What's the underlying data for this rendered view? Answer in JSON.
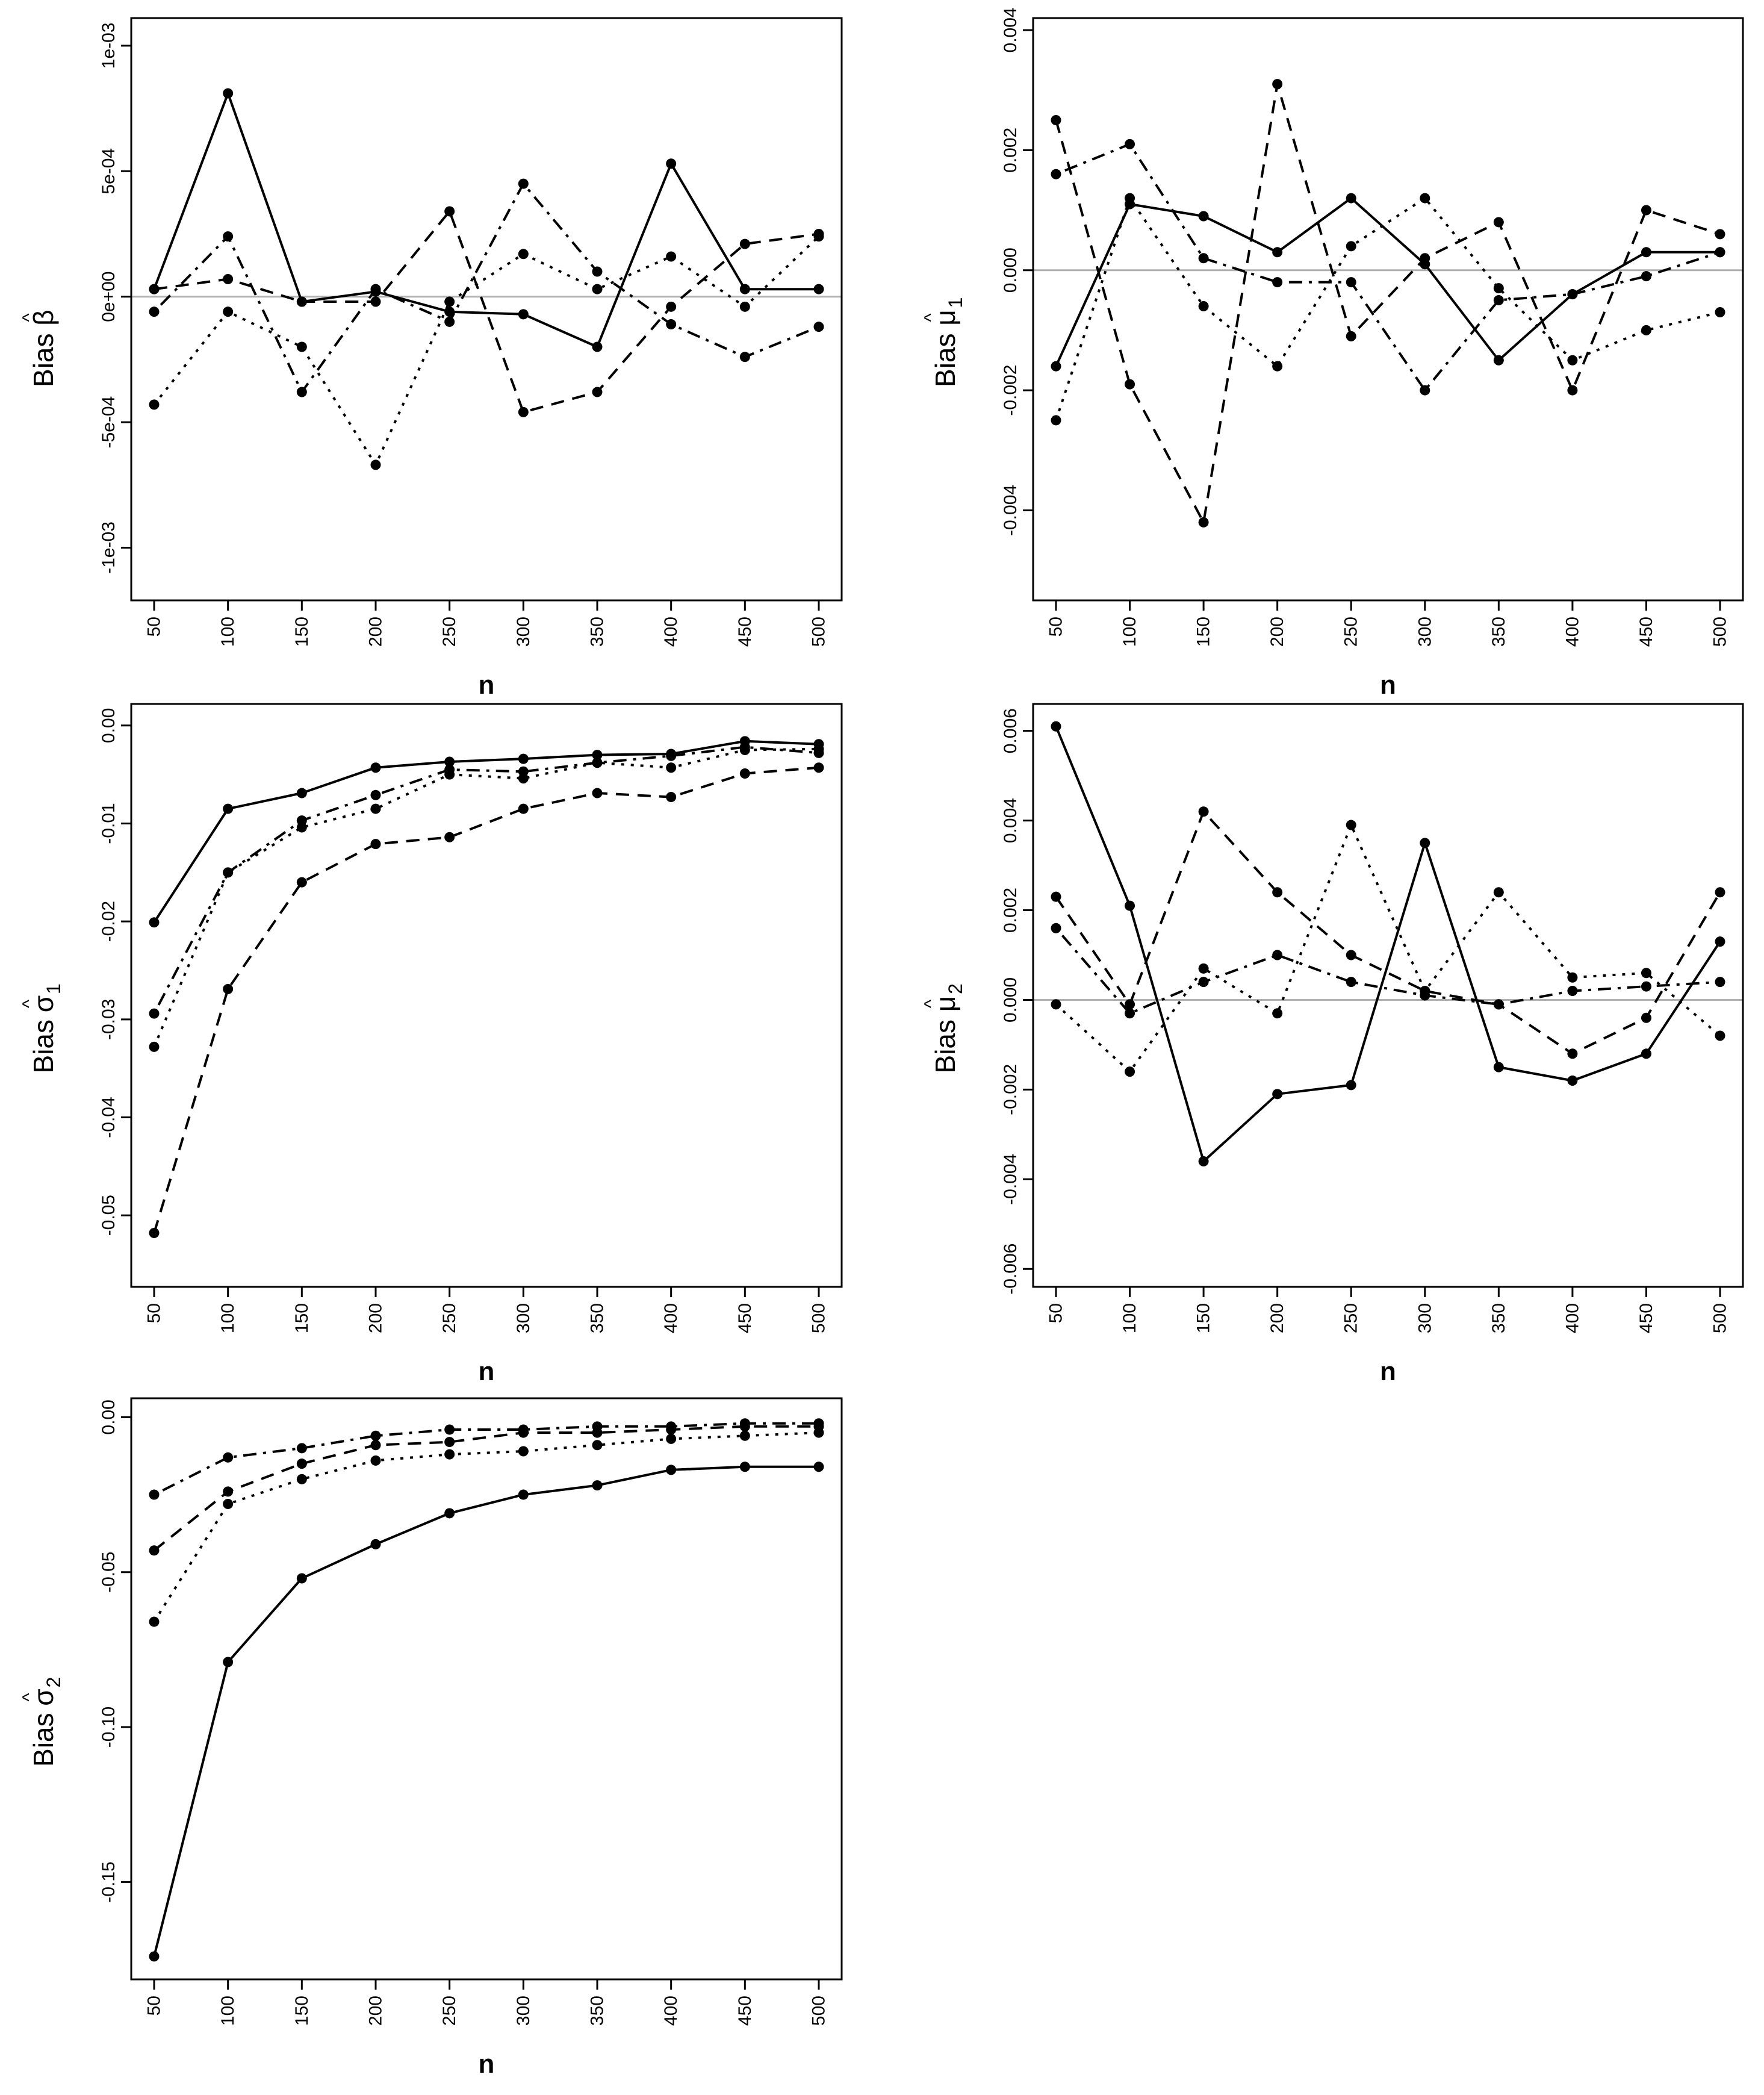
{
  "chart_data": [
    {
      "id": "beta",
      "type": "line",
      "ylabel": {
        "prefix": "Bias",
        "symbol": "β",
        "hat": "^",
        "sub": ""
      },
      "xlabel": "n",
      "x": [
        50,
        100,
        150,
        200,
        250,
        300,
        350,
        400,
        450,
        500
      ],
      "xtick_labels": [
        "50",
        "100",
        "150",
        "200",
        "250",
        "300",
        "350",
        "400",
        "450",
        "500"
      ],
      "ylim": [
        -0.00121,
        0.00111
      ],
      "yticks": [
        -0.001,
        -0.0005,
        0.0,
        0.0005,
        0.001
      ],
      "ytick_labels": [
        "-1e-03",
        "-5e-04",
        "0e+00",
        "5e-04",
        "1e-03"
      ],
      "reference_line": 0,
      "series": [
        {
          "name": "solid",
          "dash": "solid",
          "values": [
            3e-05,
            0.00081,
            -2e-05,
            2e-05,
            -6e-05,
            -7e-05,
            -0.0002,
            0.00053,
            3e-05,
            3e-05
          ]
        },
        {
          "name": "dashed",
          "dash": "dashed",
          "values": [
            3e-05,
            7e-05,
            -2e-05,
            -2e-05,
            0.00034,
            -0.00046,
            -0.00038,
            -4e-05,
            0.00021,
            0.00025
          ]
        },
        {
          "name": "dotted",
          "dash": "dotted",
          "values": [
            -0.00043,
            -6e-05,
            -0.0002,
            -0.00067,
            -2e-05,
            0.00017,
            3e-05,
            0.00016,
            -4e-05,
            0.00024
          ]
        },
        {
          "name": "dotdash",
          "dash": "dotdash",
          "values": [
            -6e-05,
            0.00024,
            -0.00038,
            3e-05,
            -0.0001,
            0.00045,
            0.0001,
            -0.00011,
            -0.00024,
            -0.00012
          ]
        }
      ]
    },
    {
      "id": "mu1",
      "type": "line",
      "ylabel": {
        "prefix": "Bias",
        "symbol": "μ",
        "hat": "^",
        "sub": "1"
      },
      "xlabel": "n",
      "x": [
        50,
        100,
        150,
        200,
        250,
        300,
        350,
        400,
        450,
        500
      ],
      "xtick_labels": [
        "50",
        "100",
        "150",
        "200",
        "250",
        "300",
        "350",
        "400",
        "450",
        "500"
      ],
      "yticks": [
        -0.004,
        -0.002,
        0.0,
        0.002,
        0.004
      ],
      "ytick_labels": [
        "-0.004",
        "-0.002",
        "0.000",
        "0.002",
        "0.004"
      ],
      "ylim": [
        -0.0055,
        0.0042
      ],
      "reference_line": 0,
      "series": [
        {
          "name": "solid",
          "dash": "solid",
          "values": [
            -0.0016,
            0.0011,
            0.0009,
            0.0003,
            0.0012,
            0.0001,
            -0.0015,
            -0.0004,
            0.0003,
            0.0003
          ]
        },
        {
          "name": "dashed",
          "dash": "dashed",
          "values": [
            0.0025,
            -0.0019,
            -0.0042,
            0.0031,
            -0.0011,
            0.0002,
            0.0008,
            -0.002,
            0.001,
            0.0006
          ]
        },
        {
          "name": "dotted",
          "dash": "dotted",
          "values": [
            -0.0025,
            0.0012,
            -0.0006,
            -0.0016,
            0.0004,
            0.0012,
            -0.0003,
            -0.0015,
            -0.001,
            -0.0007
          ]
        },
        {
          "name": "dotdash",
          "dash": "dotdash",
          "values": [
            0.0016,
            0.0021,
            0.0002,
            -0.0002,
            -0.0002,
            -0.002,
            -0.0005,
            -0.0004,
            -0.0001,
            0.0003
          ]
        }
      ]
    },
    {
      "id": "sigma1",
      "type": "line",
      "ylabel": {
        "prefix": "Bias",
        "symbol": "σ",
        "hat": "^",
        "sub": "1"
      },
      "xlabel": "n",
      "x": [
        50,
        100,
        150,
        200,
        250,
        300,
        350,
        400,
        450,
        500
      ],
      "xtick_labels": [
        "50",
        "100",
        "150",
        "200",
        "250",
        "300",
        "350",
        "400",
        "450",
        "500"
      ],
      "yticks": [
        -0.05,
        -0.04,
        -0.03,
        -0.02,
        -0.01,
        0.0
      ],
      "ytick_labels": [
        "-0.05",
        "-0.04",
        "-0.03",
        "-0.02",
        "-0.01",
        "0.00"
      ],
      "ylim": [
        -0.0573,
        0.0022
      ],
      "series": [
        {
          "name": "solid",
          "dash": "solid",
          "values": [
            -0.0201,
            -0.0085,
            -0.0069,
            -0.0043,
            -0.0037,
            -0.0034,
            -0.003,
            -0.0029,
            -0.0016,
            -0.0019
          ]
        },
        {
          "name": "dashed",
          "dash": "dashed",
          "values": [
            -0.0518,
            -0.0269,
            -0.016,
            -0.0121,
            -0.0114,
            -0.0085,
            -0.0069,
            -0.0073,
            -0.0049,
            -0.0043
          ]
        },
        {
          "name": "dotted",
          "dash": "dotted",
          "values": [
            -0.0328,
            -0.015,
            -0.0104,
            -0.0085,
            -0.005,
            -0.0054,
            -0.0038,
            -0.0043,
            -0.0025,
            -0.0024
          ]
        },
        {
          "name": "dotdash",
          "dash": "dotdash",
          "values": [
            -0.0294,
            -0.015,
            -0.0097,
            -0.0071,
            -0.0045,
            -0.0047,
            -0.0038,
            -0.0031,
            -0.0022,
            -0.0028
          ]
        }
      ]
    },
    {
      "id": "mu2",
      "type": "line",
      "ylabel": {
        "prefix": "Bias",
        "symbol": "μ",
        "hat": "^",
        "sub": "2"
      },
      "xlabel": "n",
      "x": [
        50,
        100,
        150,
        200,
        250,
        300,
        350,
        400,
        450,
        500
      ],
      "xtick_labels": [
        "50",
        "100",
        "150",
        "200",
        "250",
        "300",
        "350",
        "400",
        "450",
        "500"
      ],
      "yticks": [
        -0.006,
        -0.004,
        -0.002,
        0.0,
        0.002,
        0.004,
        0.006
      ],
      "ytick_labels": [
        "-0.006",
        "-0.004",
        "-0.002",
        "0.000",
        "0.002",
        "0.004",
        "0.006"
      ],
      "ylim": [
        -0.0064,
        0.0066
      ],
      "reference_line": 0,
      "series": [
        {
          "name": "solid",
          "dash": "solid",
          "values": [
            0.0061,
            0.0021,
            -0.0036,
            -0.0021,
            -0.0019,
            0.0035,
            -0.0015,
            -0.0018,
            -0.0012,
            0.0013
          ]
        },
        {
          "name": "dashed",
          "dash": "dashed",
          "values": [
            0.0023,
            -0.0001,
            0.0042,
            0.0024,
            0.001,
            0.0002,
            -0.0001,
            -0.0012,
            -0.0004,
            0.0024
          ]
        },
        {
          "name": "dotted",
          "dash": "dotted",
          "values": [
            -0.0001,
            -0.0016,
            0.0007,
            -0.0003,
            0.0039,
            0.0002,
            0.0024,
            0.0005,
            0.0006,
            -0.0008
          ]
        },
        {
          "name": "dotdash",
          "dash": "dotdash",
          "values": [
            0.0016,
            -0.0003,
            0.0004,
            0.001,
            0.0004,
            0.0001,
            -0.0001,
            0.0002,
            0.0003,
            0.0004
          ]
        }
      ]
    },
    {
      "id": "sigma2",
      "type": "line",
      "ylabel": {
        "prefix": "Bias",
        "symbol": "σ",
        "hat": "^",
        "sub": "2"
      },
      "xlabel": "n",
      "x": [
        50,
        100,
        150,
        200,
        250,
        300,
        350,
        400,
        450,
        500
      ],
      "xtick_labels": [
        "50",
        "100",
        "150",
        "200",
        "250",
        "300",
        "350",
        "400",
        "450",
        "500"
      ],
      "yticks": [
        -0.15,
        -0.1,
        -0.05,
        0.0
      ],
      "ytick_labels": [
        "-0.15",
        "-0.10",
        "-0.05",
        "0.00"
      ],
      "ylim": [
        -0.1814,
        0.0061
      ],
      "series": [
        {
          "name": "solid",
          "dash": "solid",
          "values": [
            -0.174,
            -0.079,
            -0.052,
            -0.041,
            -0.031,
            -0.025,
            -0.022,
            -0.017,
            -0.016,
            -0.016
          ]
        },
        {
          "name": "dashed",
          "dash": "dashed",
          "values": [
            -0.043,
            -0.024,
            -0.015,
            -0.009,
            -0.008,
            -0.005,
            -0.005,
            -0.004,
            -0.003,
            -0.003
          ]
        },
        {
          "name": "dotted",
          "dash": "dotted",
          "values": [
            -0.066,
            -0.028,
            -0.02,
            -0.014,
            -0.012,
            -0.011,
            -0.009,
            -0.007,
            -0.006,
            -0.005
          ]
        },
        {
          "name": "dotdash",
          "dash": "dotdash",
          "values": [
            -0.025,
            -0.013,
            -0.01,
            -0.006,
            -0.004,
            -0.004,
            -0.003,
            -0.003,
            -0.002,
            -0.002
          ]
        }
      ]
    }
  ]
}
